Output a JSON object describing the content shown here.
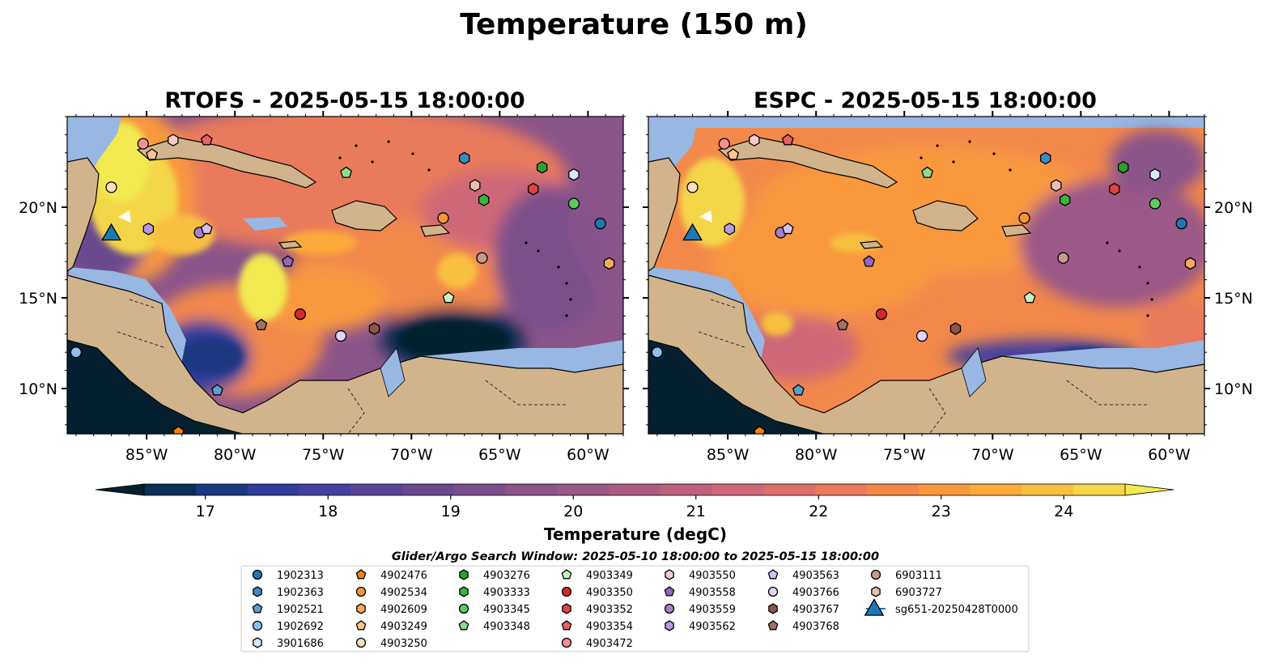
{
  "figure": {
    "title": "Temperature (150 m)",
    "search_window": "Glider/Argo Search Window: 2025-05-10 18:00:00 to 2025-05-15 18:00:00"
  },
  "chart_data": [
    {
      "type": "heatmap",
      "title": "RTOFS - 2025-05-15 18:00:00",
      "xlim": [
        -89.5,
        -58.0
      ],
      "ylim": [
        7.5,
        25.0
      ],
      "x_ticks": [
        "85°W",
        "80°W",
        "75°W",
        "70°W",
        "65°W",
        "60°W"
      ],
      "x_tick_values": [
        -85,
        -80,
        -75,
        -70,
        -65,
        -60
      ],
      "y_ticks": [
        "10°N",
        "15°N",
        "20°N"
      ],
      "y_tick_values": [
        10,
        15,
        20
      ]
    },
    {
      "type": "heatmap",
      "title": "ESPC - 2025-05-15 18:00:00",
      "xlim": [
        -89.5,
        -58.0
      ],
      "ylim": [
        7.5,
        25.0
      ],
      "x_ticks": [
        "85°W",
        "80°W",
        "75°W",
        "70°W",
        "65°W",
        "60°W"
      ],
      "x_tick_values": [
        -85,
        -80,
        -75,
        -70,
        -65,
        -60
      ],
      "y_ticks": [
        "10°N",
        "15°N",
        "20°N"
      ],
      "y_tick_values": [
        10,
        15,
        20
      ]
    }
  ],
  "colorbar": {
    "label": "Temperature (degC)",
    "min": 16.5,
    "max": 24.5,
    "step": 0.5,
    "ticks": [
      "17",
      "18",
      "19",
      "20",
      "21",
      "22",
      "23",
      "24"
    ],
    "tick_values": [
      17,
      18,
      19,
      20,
      21,
      22,
      23,
      24
    ],
    "colors": [
      "#04202f",
      "#0c2e55",
      "#1b3881",
      "#2e3d98",
      "#443f9e",
      "#594397",
      "#6a498f",
      "#7a4f8c",
      "#8b548a",
      "#9c5887",
      "#ac5c83",
      "#bd617e",
      "#cd6878",
      "#dc6f6c",
      "#e97a5c",
      "#f3884b",
      "#f9983e",
      "#fbab3b",
      "#f8c03f",
      "#f4d648",
      "#f1ea51"
    ],
    "extend": "both"
  },
  "colors": {
    "land": "#d2b48c",
    "shallow_water": "#98b7e2",
    "deep_cold": "#04202f",
    "mid": "#8b548a",
    "warm": "#f9983e",
    "hot": "#f1ea51"
  },
  "floats": [
    {
      "id": "1902313",
      "marker": "circle",
      "color": "#1f77b4",
      "lon": -59.3,
      "lat": 19.1
    },
    {
      "id": "1902363",
      "marker": "hexagon",
      "color": "#3b8bc2",
      "lon": -67.0,
      "lat": 22.7
    },
    {
      "id": "1902521",
      "marker": "pentagon",
      "color": "#5a9fd0",
      "lon": -81.0,
      "lat": 9.9
    },
    {
      "id": "1902692",
      "marker": "circle",
      "color": "#90c0ea",
      "lon": -89.0,
      "lat": 12.0
    },
    {
      "id": "3901686",
      "marker": "hexagon",
      "color": "#d6e8f8",
      "lon": -60.8,
      "lat": 21.8
    },
    {
      "id": "4902476",
      "marker": "pentagon",
      "color": "#f57f17",
      "lon": -83.2,
      "lat": 7.6
    },
    {
      "id": "4902534",
      "marker": "circle",
      "color": "#f79438",
      "lon": -68.2,
      "lat": 19.4
    },
    {
      "id": "4902609",
      "marker": "hexagon",
      "color": "#f9a95c",
      "lon": -58.8,
      "lat": 16.9
    },
    {
      "id": "4903249",
      "marker": "pentagon",
      "color": "#fbc48f",
      "lon": -84.7,
      "lat": 22.9
    },
    {
      "id": "4903250",
      "marker": "circle",
      "color": "#fde0c0",
      "lon": -87.0,
      "lat": 21.1
    },
    {
      "id": "4903276",
      "marker": "hexagon",
      "color": "#2ca02c",
      "lon": -62.6,
      "lat": 22.2
    },
    {
      "id": "4903333",
      "marker": "hexagon",
      "color": "#3bb43b",
      "lon": -65.9,
      "lat": 20.4
    },
    {
      "id": "4903345",
      "marker": "circle",
      "color": "#5ec95e",
      "lon": -60.8,
      "lat": 20.2
    },
    {
      "id": "4903348",
      "marker": "pentagon",
      "color": "#8fdc8f",
      "lon": -73.7,
      "lat": 21.9
    },
    {
      "id": "4903349",
      "marker": "pentagon",
      "color": "#c9f2c2",
      "lon": -67.9,
      "lat": 15.0
    },
    {
      "id": "4903350",
      "marker": "circle",
      "color": "#d62728",
      "lon": -76.3,
      "lat": 14.1
    },
    {
      "id": "4903352",
      "marker": "hexagon",
      "color": "#e04343",
      "lon": -63.1,
      "lat": 21.0
    },
    {
      "id": "4903354",
      "marker": "pentagon",
      "color": "#e86060",
      "lon": -81.6,
      "lat": 23.7
    },
    {
      "id": "4903472",
      "marker": "circle",
      "color": "#f29090",
      "lon": -85.2,
      "lat": 23.5
    },
    {
      "id": "4903550",
      "marker": "hexagon",
      "color": "#f8c9c9",
      "lon": -83.5,
      "lat": 23.7
    },
    {
      "id": "4903558",
      "marker": "pentagon",
      "color": "#9467bd",
      "lon": -77.0,
      "lat": 17.0
    },
    {
      "id": "4903559",
      "marker": "circle",
      "color": "#a57fcc",
      "lon": -82.0,
      "lat": 18.6
    },
    {
      "id": "4903562",
      "marker": "hexagon",
      "color": "#b99ae0",
      "lon": -84.9,
      "lat": 18.8
    },
    {
      "id": "4903563",
      "marker": "pentagon",
      "color": "#d3c0ef",
      "lon": -81.6,
      "lat": 18.8
    },
    {
      "id": "4903766",
      "marker": "circle",
      "color": "#e2d2f8",
      "lon": -74.0,
      "lat": 12.9
    },
    {
      "id": "4903767",
      "marker": "hexagon",
      "color": "#8c564b",
      "lon": -72.1,
      "lat": 13.3
    },
    {
      "id": "4903768",
      "marker": "pentagon",
      "color": "#a06e63",
      "lon": -78.5,
      "lat": 13.5
    },
    {
      "id": "6903111",
      "marker": "circle",
      "color": "#c49a8e",
      "lon": -66.0,
      "lat": 17.2
    },
    {
      "id": "6903727",
      "marker": "hexagon",
      "color": "#e8bfb2",
      "lon": -66.4,
      "lat": 21.2
    },
    {
      "id": "sg651-20250428T0000",
      "marker": "triangle",
      "color": "#1f77b4",
      "lon": -87.0,
      "lat": 18.6
    }
  ]
}
